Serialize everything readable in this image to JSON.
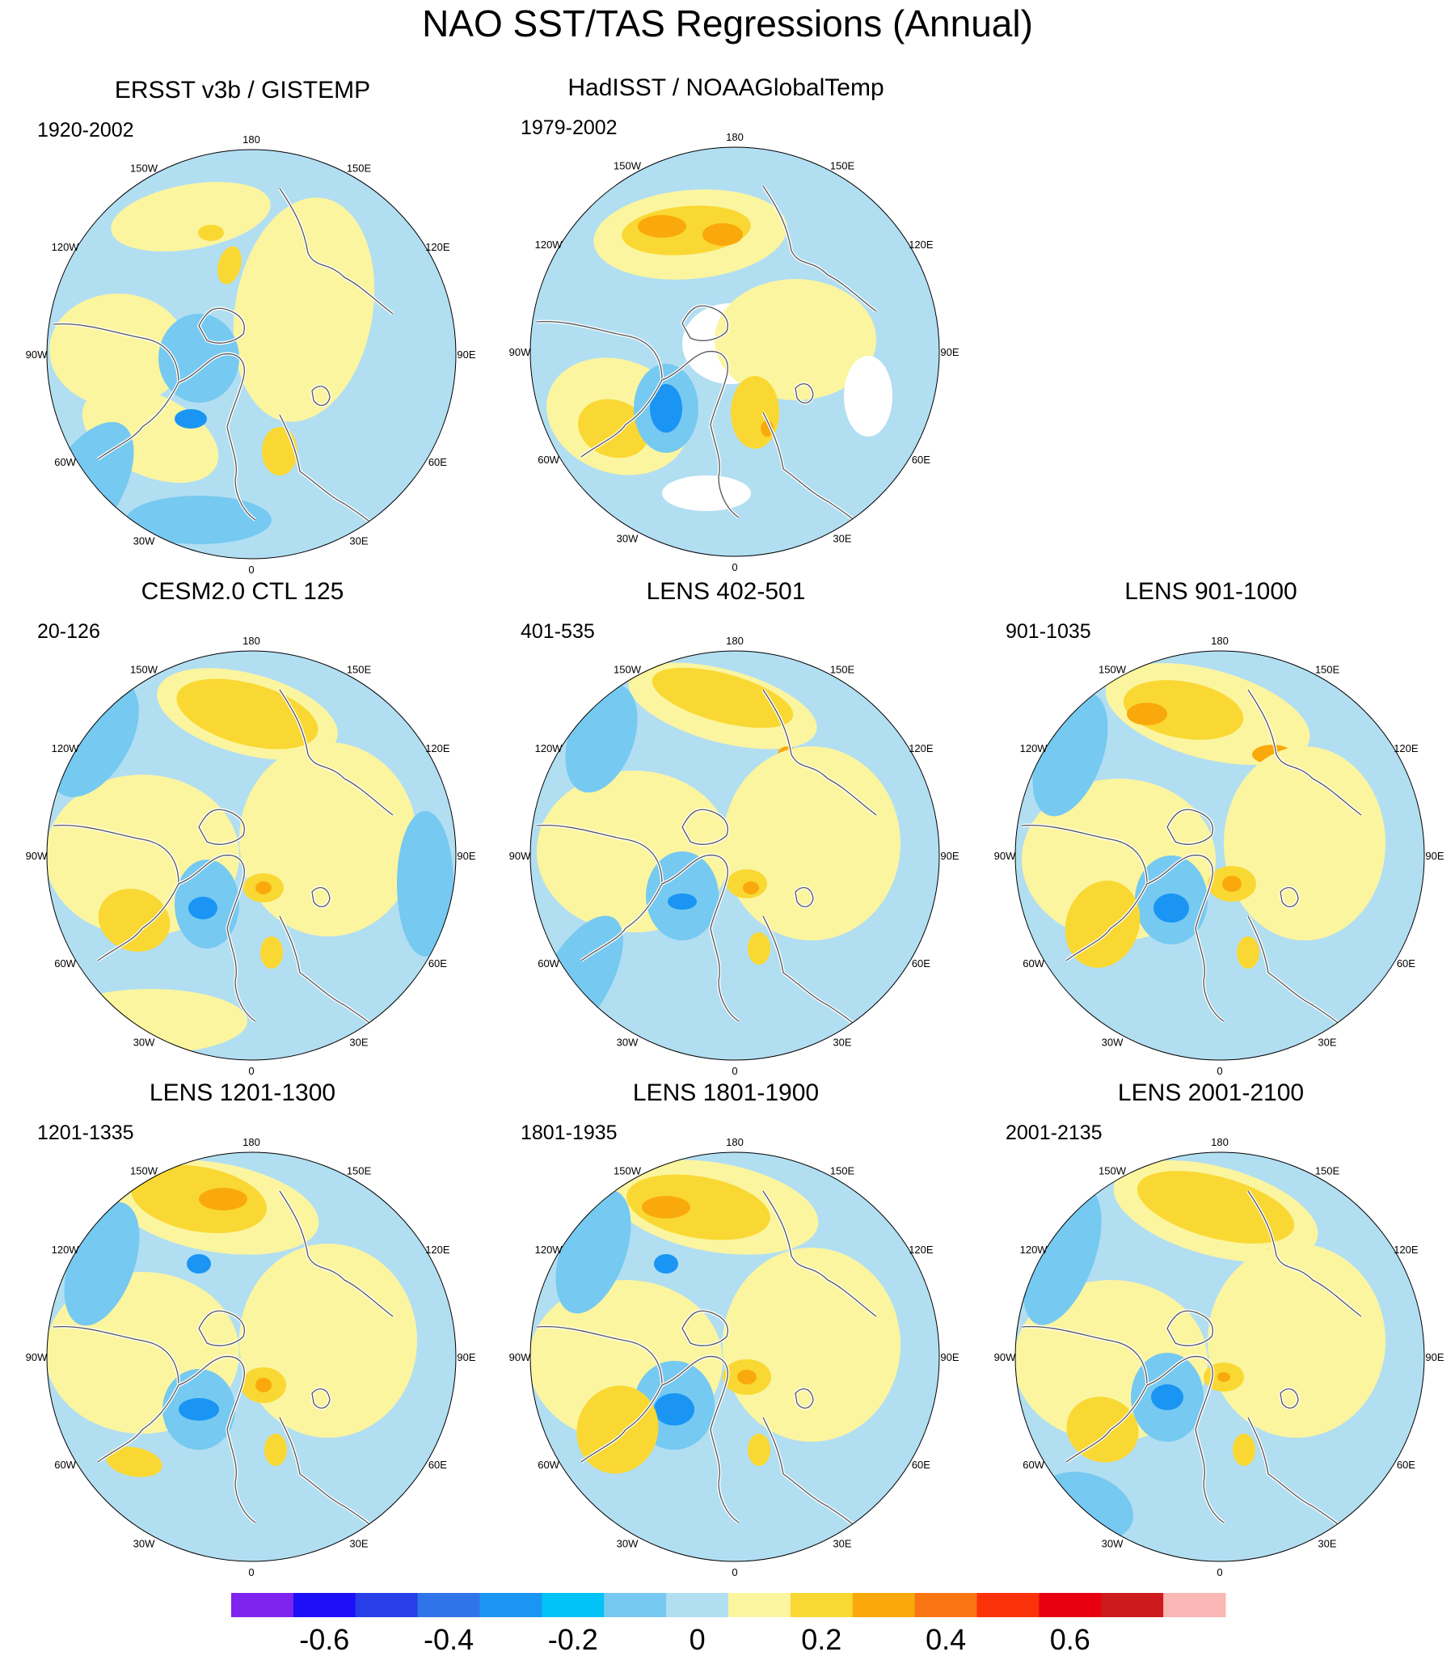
{
  "title": "NAO SST/TAS Regressions (Annual)",
  "longitude_labels": [
    "180",
    "150E",
    "120E",
    "90E",
    "60E",
    "30E",
    "0",
    "30W",
    "60W",
    "90W",
    "120W",
    "150W"
  ],
  "panels": [
    {
      "title": "ERSST v3b / GISTEMP",
      "period": "1920-2002"
    },
    {
      "title": "HadISST / NOAAGlobalTemp",
      "period": "1979-2002"
    },
    {
      "title": "CESM2.0 CTL 125",
      "period": "20-126"
    },
    {
      "title": "LENS 402-501",
      "period": "401-535"
    },
    {
      "title": "LENS 901-1000",
      "period": "901-1035"
    },
    {
      "title": "LENS 1201-1300",
      "period": "1201-1335"
    },
    {
      "title": "LENS 1801-1900",
      "period": "1801-1935"
    },
    {
      "title": "LENS 2001-2100",
      "period": "2001-2135"
    }
  ],
  "colorbar": {
    "colors": [
      "#7f24ee",
      "#1d10f8",
      "#283ee9",
      "#3074e9",
      "#1a95f3",
      "#02c2f7",
      "#76c9f1",
      "#b2def2",
      "#fbf5a0",
      "#fad833",
      "#f9a90b",
      "#f97612",
      "#fb310a",
      "#e90010",
      "#cd1b1d",
      "#fbb6b6"
    ],
    "labels": [
      "-0.6",
      "-0.4",
      "-0.2",
      "0",
      "0.2",
      "0.4",
      "0.6"
    ]
  },
  "palette": {
    "ocean_bg": "#b2def2",
    "positive_weak": "#fbf5a0",
    "positive_mod": "#fad833",
    "positive_strong": "#f9a90b",
    "negative_mod": "#76c9f1",
    "negative_strong": "#1a95f3",
    "coast": "#555555",
    "missing": "#ffffff"
  }
}
